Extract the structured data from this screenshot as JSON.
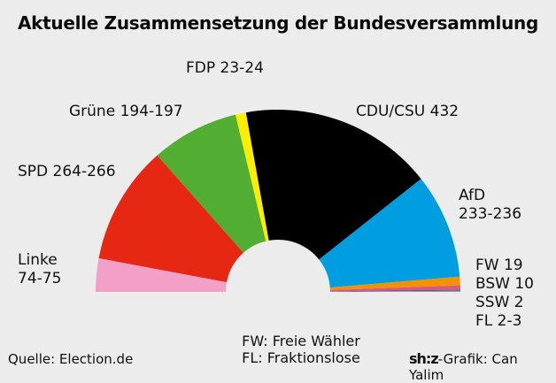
{
  "title": "Aktuelle Zusammensetzung der Bundesversammlung",
  "source": "Quelle: Election.de",
  "legend_note": [
    "FW: Freie Wähler",
    "FL: Fraktionslose"
  ],
  "credit": {
    "logo": "sh:z",
    "text": "-Grafik: Can Yalim"
  },
  "chart_data": {
    "type": "pie",
    "subtype": "semicircle-donut",
    "title": "Aktuelle Zusammensetzung der Bundesversammlung",
    "order": "left-to-right",
    "series": [
      {
        "name": "Linke",
        "label": "Linke 74-75",
        "min": 74,
        "max": 75,
        "color": "#f2a0c8"
      },
      {
        "name": "SPD",
        "label": "SPD 264-266",
        "min": 264,
        "max": 266,
        "color": "#e52713"
      },
      {
        "name": "Grüne",
        "label": "Grüne 194-197",
        "min": 194,
        "max": 197,
        "color": "#52ae32"
      },
      {
        "name": "FDP",
        "label": "FDP 23-24",
        "min": 23,
        "max": 24,
        "color": "#ffed00"
      },
      {
        "name": "CDU/CSU",
        "label": "CDU/CSU 432",
        "min": 432,
        "max": 432,
        "color": "#000000"
      },
      {
        "name": "AfD",
        "label": "AfD 233-236",
        "min": 233,
        "max": 236,
        "color": "#009ee0"
      },
      {
        "name": "FW",
        "label": "FW 19",
        "min": 19,
        "max": 19,
        "color": "#f39200"
      },
      {
        "name": "BSW",
        "label": "BSW 10",
        "min": 10,
        "max": 10,
        "color": "#e0567a"
      },
      {
        "name": "SSW",
        "label": "SSW 2",
        "min": 2,
        "max": 2,
        "color": "#2b4f9e"
      },
      {
        "name": "FL",
        "label": "FL 2-3",
        "min": 2,
        "max": 3,
        "color": "#999999"
      }
    ]
  }
}
